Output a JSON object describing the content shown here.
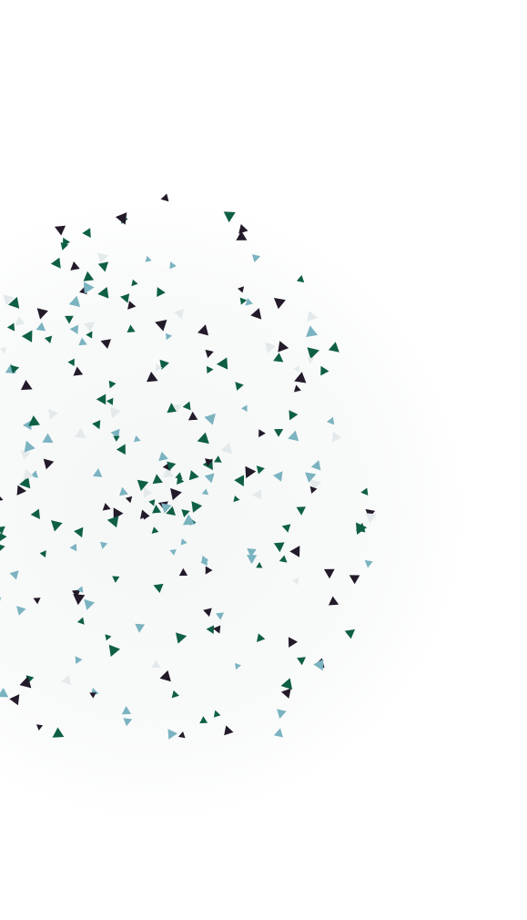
{
  "background": {
    "color": "#ffffff",
    "glow_color": "#f6f8f8"
  },
  "confetti": {
    "shape": "triangle",
    "palette": [
      "#0e5f45",
      "#7bb3c0",
      "#231a2a",
      "#e4eaeb"
    ],
    "count": 260
  }
}
